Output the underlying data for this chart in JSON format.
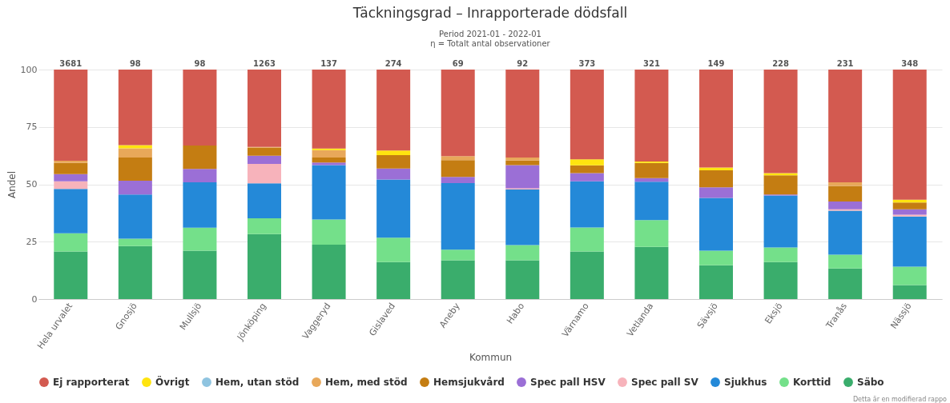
{
  "chart_data": {
    "type": "bar",
    "stacked": true,
    "title": "Täckningsgrad – Inrapporterade dödsfall",
    "subtitle": "Period 2021-01 - 2022-01",
    "xlabel": "Kommun",
    "ylabel": "Andel",
    "annotations": [
      "η = Totalt antal observationer",
      "Detta är en modifierad rappo",
      {
        "text": "3681",
        "x": "Hela urvalet",
        "y": 100
      },
      {
        "text": "98",
        "x": "Gnosjö",
        "y": 100
      },
      {
        "text": "98",
        "x": "Mullsjö",
        "y": 100
      },
      {
        "text": "1263",
        "x": "Jönköping",
        "y": 100
      },
      {
        "text": "137",
        "x": "Vaggeryd",
        "y": 100
      },
      {
        "text": "274",
        "x": "Gislaved",
        "y": 100
      },
      {
        "text": "69",
        "x": "Aneby",
        "y": 100
      },
      {
        "text": "92",
        "x": "Habo",
        "y": 100
      },
      {
        "text": "373",
        "x": "Värnamo",
        "y": 100
      },
      {
        "text": "321",
        "x": "Vetlanda",
        "y": 100
      },
      {
        "text": "149",
        "x": "Sävsjö",
        "y": 100
      },
      {
        "text": "228",
        "x": "Eksjö",
        "y": 100
      },
      {
        "text": "231",
        "x": "Tranås",
        "y": 100
      },
      {
        "text": "348",
        "x": "Nässjö",
        "y": 100
      }
    ],
    "categories": [
      "Hela urvalet",
      "Gnosjö",
      "Mullsjö",
      "Jönköping",
      "Vaggeryd",
      "Gislaved",
      "Aneby",
      "Habo",
      "Värnamo",
      "Vetlanda",
      "Sävsjö",
      "Eksjö",
      "Tranås",
      "Nässjö"
    ],
    "ylim": [
      0,
      100
    ],
    "yticks": [
      0,
      25,
      50,
      75,
      100
    ],
    "grid": "y",
    "legend": "bottom",
    "series": [
      {
        "name": "Säbo",
        "color": "#3aad6c",
        "values": [
          20.7,
          23.1,
          21.1,
          28.3,
          23.7,
          16.1,
          16.9,
          16.9,
          20.7,
          22.7,
          14.7,
          16.1,
          13.3,
          6.1
        ]
      },
      {
        "name": "Korttid",
        "color": "#74e08a",
        "values": [
          8.0,
          3.2,
          10.0,
          6.9,
          11.0,
          10.6,
          4.6,
          6.6,
          10.5,
          11.7,
          6.4,
          6.4,
          6.0,
          8.0
        ]
      },
      {
        "name": "Sjukhus",
        "color": "#2489d8",
        "values": [
          19.3,
          19.3,
          19.8,
          15.2,
          23.7,
          25.4,
          29.0,
          24.2,
          20.1,
          16.7,
          23.0,
          22.6,
          19.2,
          21.9
        ]
      },
      {
        "name": "Spec pall SV",
        "color": "#f7b3bb",
        "values": [
          3.3,
          0,
          0,
          8.5,
          0,
          0,
          0,
          0.6,
          0,
          0,
          0,
          0,
          0.6,
          0.8
        ]
      },
      {
        "name": "Spec pall HSV",
        "color": "#9b6fd6",
        "values": [
          3.1,
          6.0,
          5.8,
          3.6,
          1.1,
          4.8,
          2.7,
          10.1,
          3.6,
          1.6,
          4.6,
          0.5,
          3.4,
          2.3
        ]
      },
      {
        "name": "Hemsjukvård",
        "color": "#c47d12",
        "values": [
          4.9,
          10.1,
          10.2,
          3.4,
          2.2,
          5.8,
          7.3,
          2.0,
          3.4,
          6.6,
          7.4,
          8.3,
          6.8,
          3.0
        ]
      },
      {
        "name": "Hem, med stöd",
        "color": "#e8a85a",
        "values": [
          1.0,
          4.0,
          0,
          0.4,
          3.2,
          0,
          1.8,
          1.3,
          0,
          0,
          0,
          0,
          1.6,
          0
        ]
      },
      {
        "name": "Hem, utan stöd",
        "color": "#8fc4e0",
        "values": [
          0,
          0,
          0,
          0,
          0,
          0,
          0,
          0,
          0,
          0,
          0,
          0,
          0,
          0
        ]
      },
      {
        "name": "Övrigt",
        "color": "#ffe40f",
        "values": [
          0,
          1.4,
          0,
          0,
          0.7,
          2.0,
          0,
          0,
          2.6,
          0.6,
          1.2,
          1.0,
          0,
          1.2
        ]
      },
      {
        "name": "Ej rapporterat",
        "color": "#d35a50",
        "values": [
          39.7,
          32.9,
          33.1,
          33.7,
          34.4,
          35.3,
          37.7,
          38.3,
          39.1,
          40.1,
          42.7,
          45.1,
          49.1,
          56.7
        ]
      }
    ]
  }
}
